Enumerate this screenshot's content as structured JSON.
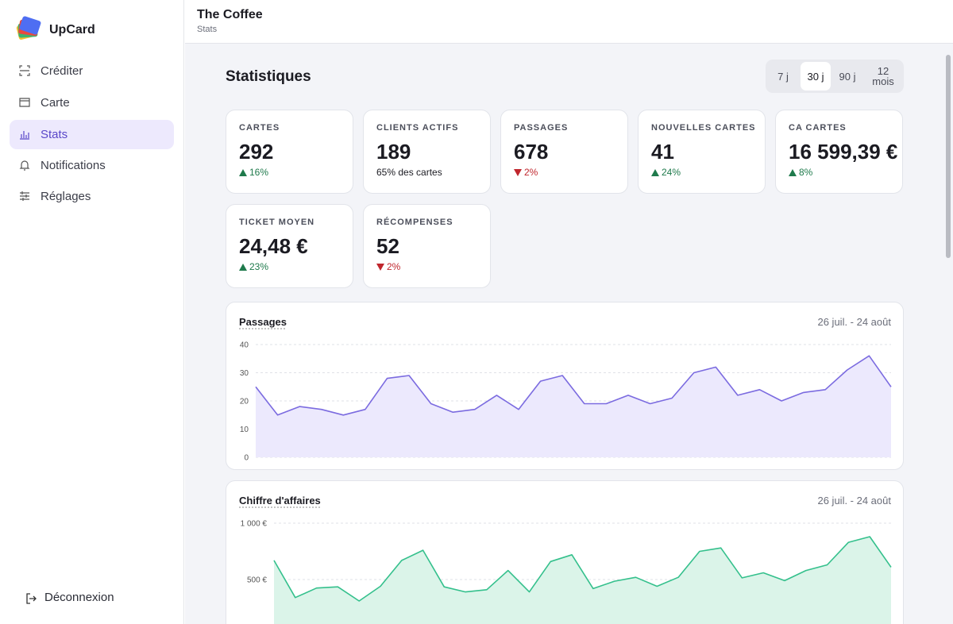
{
  "sidebar": {
    "brand": "UpCard",
    "nav": [
      "Créditer",
      "Carte",
      "Stats",
      "Notifications",
      "Réglages"
    ],
    "active": 2,
    "logout": "Déconnexion"
  },
  "header": {
    "title": "The Coffee",
    "subtitle": "Stats"
  },
  "page_title": "Statistiques",
  "periods": {
    "options": [
      "7 j",
      "30 j",
      "90 j",
      "12 mois"
    ],
    "active": 1
  },
  "stats": [
    {
      "label": "CARTES",
      "value": "292",
      "change": "16%",
      "trend": "up"
    },
    {
      "label": "CLIENTS ACTIFS",
      "value": "189",
      "note": "65% des cartes"
    },
    {
      "label": "PASSAGES",
      "value": "678",
      "change": "2%",
      "trend": "down"
    },
    {
      "label": "NOUVELLES CARTES",
      "value": "41",
      "change": "24%",
      "trend": "up"
    },
    {
      "label": "CA CARTES",
      "value": "16 599,39 €",
      "change": "8%",
      "trend": "up"
    },
    {
      "label": "TICKET MOYEN",
      "value": "24,48 €",
      "change": "23%",
      "trend": "up"
    },
    {
      "label": "RÉCOMPENSES",
      "value": "52",
      "change": "2%",
      "trend": "down"
    }
  ],
  "chart_data": [
    {
      "type": "area",
      "title": "Passages",
      "subtitle": "26 juil. - 24 août",
      "values": [
        25,
        15,
        18,
        17,
        15,
        17,
        28,
        29,
        19,
        16,
        17,
        22,
        17,
        27,
        29,
        19,
        19,
        22,
        19,
        21,
        30,
        32,
        22,
        24,
        20,
        23,
        24,
        31,
        36,
        25
      ],
      "ylim": [
        0,
        40
      ],
      "yticks": [
        0,
        10,
        20,
        30,
        40
      ],
      "grid": true,
      "color": "#7b6be0",
      "fill": "#ece9fd"
    },
    {
      "type": "area",
      "title": "Chiffre d'affaires",
      "subtitle": "26 juil. - 24 août",
      "values": [
        670,
        340,
        425,
        435,
        310,
        440,
        670,
        760,
        435,
        390,
        410,
        580,
        390,
        660,
        720,
        420,
        485,
        520,
        440,
        520,
        750,
        780,
        515,
        560,
        490,
        580,
        630,
        830,
        880,
        610
      ],
      "ylim": [
        0,
        1000
      ],
      "yticks": [
        {
          "value": 500,
          "label": "500 €"
        },
        {
          "value": 1000,
          "label": "1 000 €"
        }
      ],
      "grid": true,
      "color": "#34c08c",
      "fill": "#dbf4e9"
    }
  ]
}
